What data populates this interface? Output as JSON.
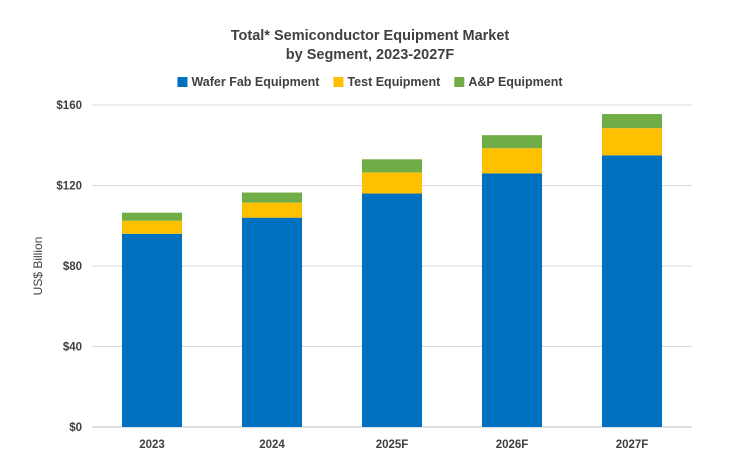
{
  "chart_data": {
    "type": "bar",
    "stacked": true,
    "title_line1": "Total* Semiconductor Equipment Market",
    "title_line2": "by Segment, 2023-2027F",
    "xlabel": "",
    "ylabel": "US$ Billion",
    "categories": [
      "2023",
      "2024",
      "2025F",
      "2026F",
      "2027F"
    ],
    "series": [
      {
        "name": "Wafer Fab Equipment",
        "color": "#0070c0",
        "values": [
          96,
          104,
          116,
          126,
          135
        ]
      },
      {
        "name": "Test Equipment",
        "color": "#ffc000",
        "values": [
          6.5,
          7.5,
          10.5,
          12.5,
          13.5
        ]
      },
      {
        "name": "A&P Equipment",
        "color": "#70ad47",
        "values": [
          4,
          5,
          6.5,
          6.5,
          7
        ]
      }
    ],
    "ylim": [
      0,
      160
    ],
    "yticks": [
      0,
      40,
      80,
      120,
      160
    ],
    "ytick_labels": [
      "$0",
      "$40",
      "$80",
      "$120",
      "$160"
    ],
    "grid": true,
    "legend_position": "top"
  }
}
